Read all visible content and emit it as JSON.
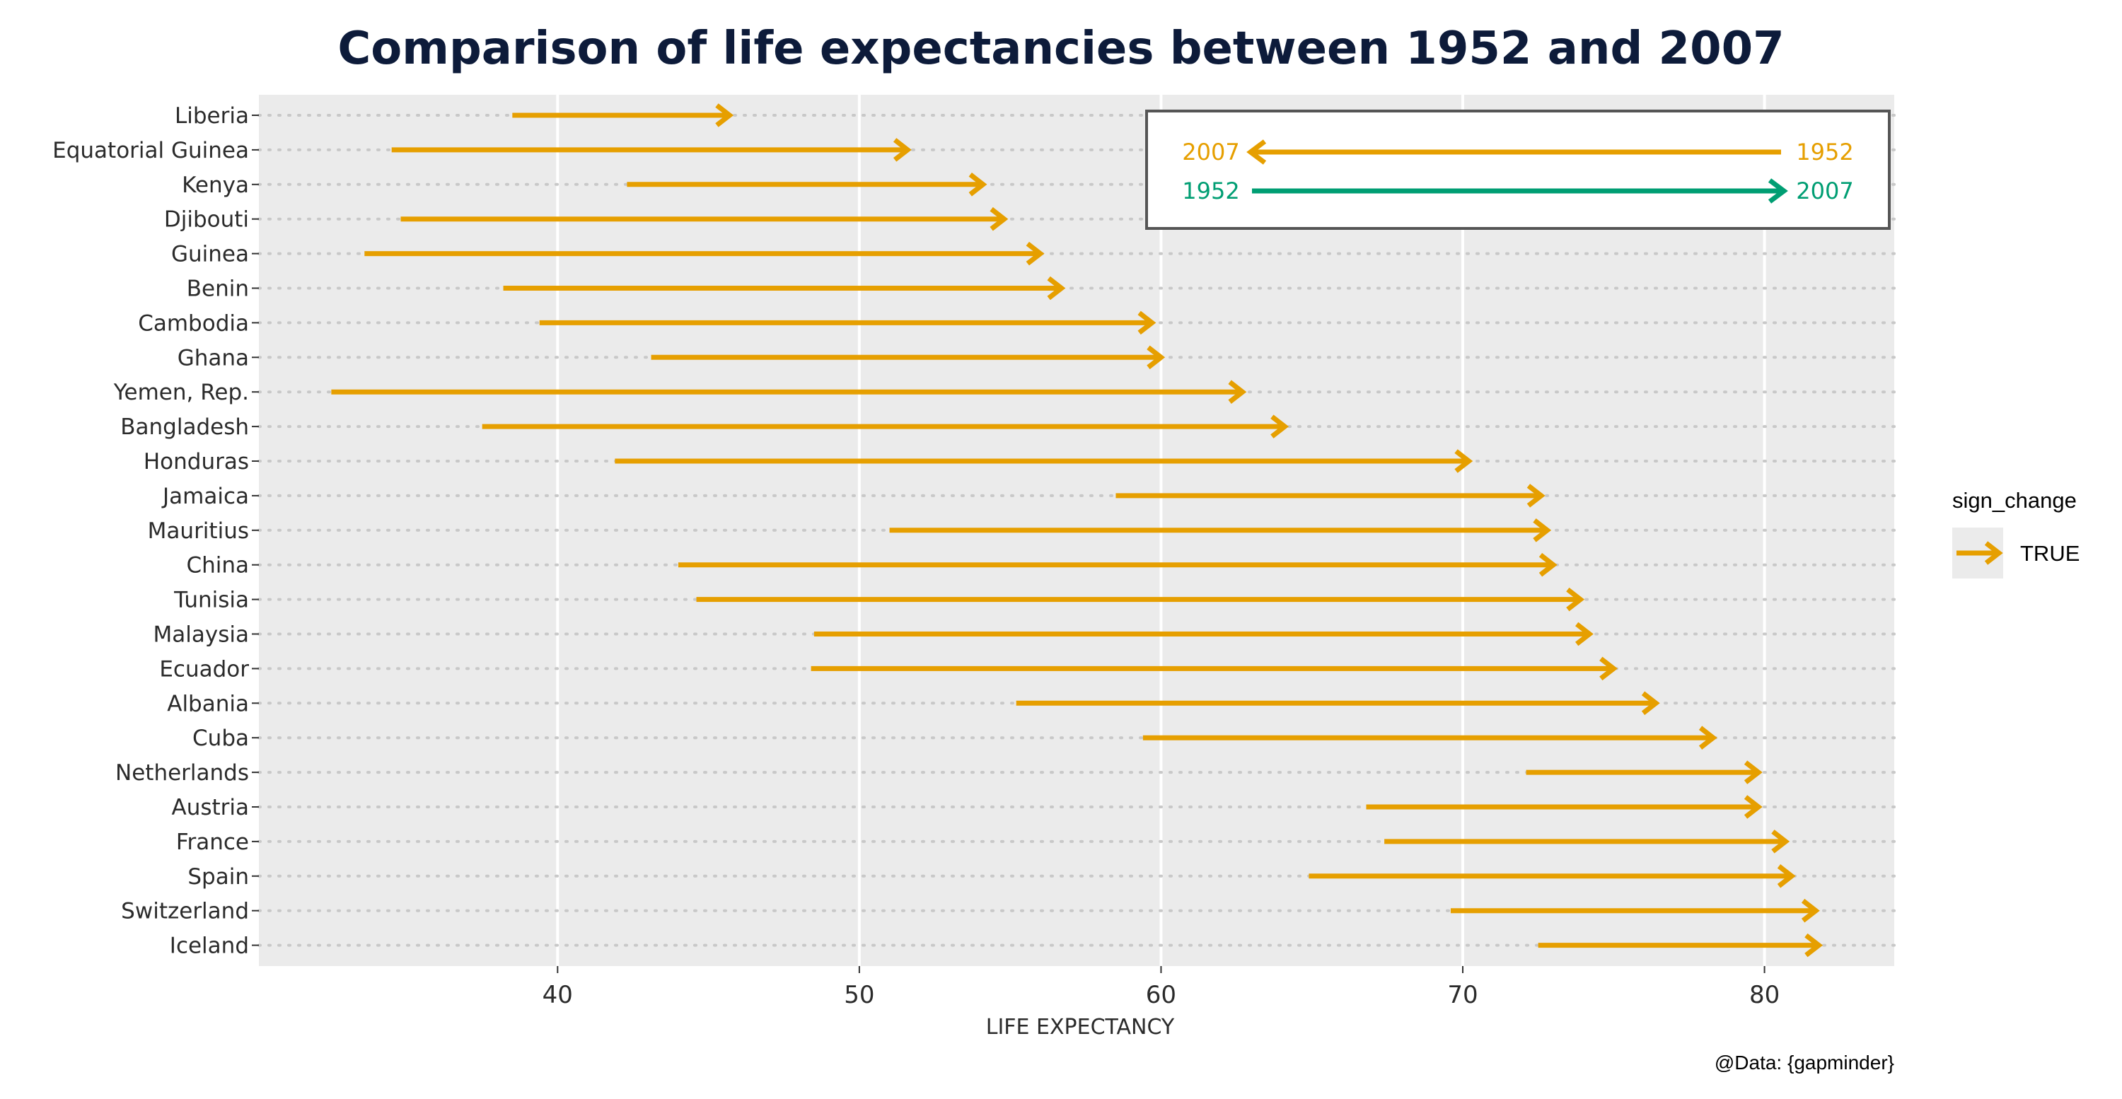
{
  "chart_data": {
    "type": "arrow_dumbbell",
    "title": "Comparison of life expectancies between 1952 and 2007",
    "xlabel": "LIFE EXPECTANCY",
    "ylabel": "",
    "xlim": [
      30.1,
      84.3
    ],
    "xticks": [
      40,
      50,
      60,
      70,
      80
    ],
    "xtick_labels": [
      "40",
      "50",
      "60",
      "70",
      "80"
    ],
    "grid": true,
    "years": {
      "start": "1952",
      "end": "2007"
    },
    "rows": [
      {
        "country": "Liberia",
        "le_1952": 38.5,
        "le_2007": 45.7
      },
      {
        "country": "Equatorial Guinea",
        "le_1952": 34.5,
        "le_2007": 51.6
      },
      {
        "country": "Kenya",
        "le_1952": 42.3,
        "le_2007": 54.1
      },
      {
        "country": "Djibouti",
        "le_1952": 34.8,
        "le_2007": 54.8
      },
      {
        "country": "Guinea",
        "le_1952": 33.6,
        "le_2007": 56.0
      },
      {
        "country": "Benin",
        "le_1952": 38.2,
        "le_2007": 56.7
      },
      {
        "country": "Cambodia",
        "le_1952": 39.4,
        "le_2007": 59.7
      },
      {
        "country": "Ghana",
        "le_1952": 43.1,
        "le_2007": 60.0
      },
      {
        "country": "Yemen, Rep.",
        "le_1952": 32.5,
        "le_2007": 62.7
      },
      {
        "country": "Bangladesh",
        "le_1952": 37.5,
        "le_2007": 64.1
      },
      {
        "country": "Honduras",
        "le_1952": 41.9,
        "le_2007": 70.2
      },
      {
        "country": "Jamaica",
        "le_1952": 58.5,
        "le_2007": 72.6
      },
      {
        "country": "Mauritius",
        "le_1952": 51.0,
        "le_2007": 72.8
      },
      {
        "country": "China",
        "le_1952": 44.0,
        "le_2007": 73.0
      },
      {
        "country": "Tunisia",
        "le_1952": 44.6,
        "le_2007": 73.9
      },
      {
        "country": "Malaysia",
        "le_1952": 48.5,
        "le_2007": 74.2
      },
      {
        "country": "Ecuador",
        "le_1952": 48.4,
        "le_2007": 75.0
      },
      {
        "country": "Albania",
        "le_1952": 55.2,
        "le_2007": 76.4
      },
      {
        "country": "Cuba",
        "le_1952": 59.4,
        "le_2007": 78.3
      },
      {
        "country": "Netherlands",
        "le_1952": 72.1,
        "le_2007": 79.8
      },
      {
        "country": "Austria",
        "le_1952": 66.8,
        "le_2007": 79.8
      },
      {
        "country": "France",
        "le_1952": 67.4,
        "le_2007": 80.7
      },
      {
        "country": "Spain",
        "le_1952": 64.9,
        "le_2007": 80.9
      },
      {
        "country": "Switzerland",
        "le_1952": 69.6,
        "le_2007": 81.7
      },
      {
        "country": "Iceland",
        "le_1952": 72.5,
        "le_2007": 81.8
      }
    ],
    "legend": {
      "title": "sign_change",
      "items": [
        {
          "label": "TRUE",
          "color": "#E69F00"
        }
      ],
      "placement": "right"
    },
    "inset_key": {
      "decrease": {
        "left_label": "2007",
        "right_label": "1952",
        "color": "#E69F00"
      },
      "increase": {
        "left_label": "1952",
        "right_label": "2007",
        "color": "#009E73"
      }
    },
    "caption": "@Data: {gapminder}"
  },
  "colors": {
    "panel_bg": "#EBEBEB",
    "gridline": "#FFFFFF",
    "row_guide": "#C8C8C8",
    "arrow_increase": "#E69F00",
    "key_decrease": "#E69F00",
    "key_increase": "#009E73",
    "title": "#0D1B3A"
  }
}
